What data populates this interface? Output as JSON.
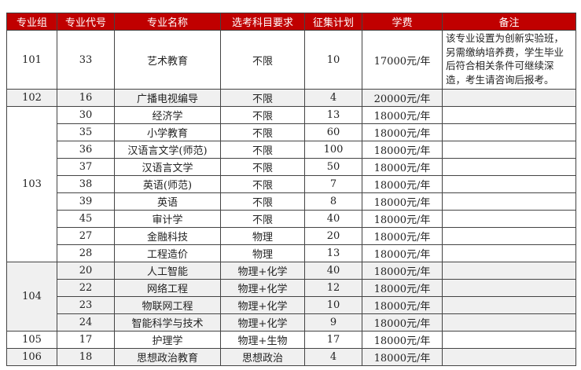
{
  "table": {
    "header": [
      "专业组",
      "专业代号",
      "专业名称",
      "选考科目要求",
      "征集计划",
      "学费",
      "备注"
    ],
    "groups": [
      {
        "group": "101",
        "note": "该专业设置为创新实验班，另需缴纳培养费，学生毕业后符合相关条件可继续深造，考生请咨询后报考。",
        "majors": [
          [
            "33",
            "艺术教育",
            "不限",
            10,
            "17000元/年"
          ]
        ]
      },
      {
        "group": "102",
        "majors": [
          [
            "16",
            "广播电视编导",
            "不限",
            4,
            "20000元/年"
          ]
        ]
      },
      {
        "group": "103",
        "majors": [
          [
            "30",
            "经济学",
            "不限",
            13,
            "18000元/年"
          ],
          [
            "35",
            "小学教育",
            "不限",
            60,
            "18000元/年"
          ],
          [
            "36",
            "汉语言文学(师范)",
            "不限",
            100,
            "18000元/年"
          ],
          [
            "37",
            "汉语言文学",
            "不限",
            50,
            "18000元/年"
          ],
          [
            "38",
            "英语(师范)",
            "不限",
            7,
            "18000元/年"
          ],
          [
            "39",
            "英语",
            "不限",
            8,
            "18000元/年"
          ],
          [
            "45",
            "审计学",
            "不限",
            40,
            "18000元/年"
          ],
          [
            "27",
            "金融科技",
            "物理",
            20,
            "18000元/年"
          ],
          [
            "28",
            "工程造价",
            "物理",
            13,
            "18000元/年"
          ]
        ]
      },
      {
        "group": "104",
        "majors": [
          [
            "20",
            "人工智能",
            "物理+化学",
            40,
            "18000元/年"
          ],
          [
            "22",
            "网络工程",
            "物理+化学",
            12,
            "18000元/年"
          ],
          [
            "23",
            "物联网工程",
            "物理+化学",
            10,
            "18000元/年"
          ],
          [
            "24",
            "智能科学与技术",
            "物理+化学",
            9,
            "18000元/年"
          ]
        ]
      },
      {
        "group": "105",
        "majors": [
          [
            "17",
            "护理学",
            "物理+生物",
            17,
            "18000元/年"
          ]
        ]
      },
      {
        "group": "106",
        "majors": [
          [
            "18",
            "思想政治教育",
            "思想政治",
            4,
            "18000元/年"
          ]
        ]
      }
    ]
  }
}
